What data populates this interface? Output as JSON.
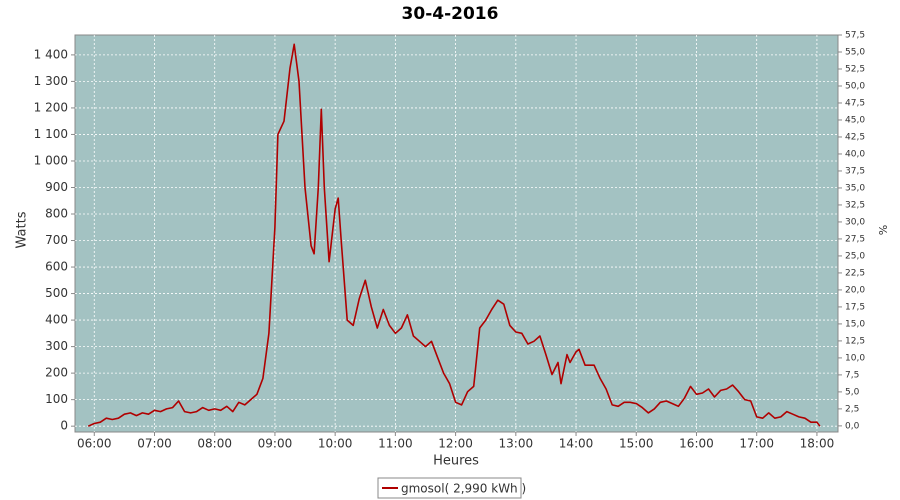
{
  "chart_data": {
    "type": "line",
    "title": "30-4-2016",
    "x_label": "Heures",
    "y_label": "Watts",
    "y2_label": "%",
    "xlim": [
      5.68,
      18.35
    ],
    "xticks": [
      {
        "value": 6,
        "label": "06:00"
      },
      {
        "value": 7,
        "label": "07:00"
      },
      {
        "value": 8,
        "label": "08:00"
      },
      {
        "value": 9,
        "label": "09:00"
      },
      {
        "value": 10,
        "label": "10:00"
      },
      {
        "value": 11,
        "label": "11:00"
      },
      {
        "value": 12,
        "label": "12:00"
      },
      {
        "value": 13,
        "label": "13:00"
      },
      {
        "value": 14,
        "label": "14:00"
      },
      {
        "value": 15,
        "label": "15:00"
      },
      {
        "value": 16,
        "label": "16:00"
      },
      {
        "value": 17,
        "label": "17:00"
      },
      {
        "value": 18,
        "label": "18:00"
      }
    ],
    "ylim": [
      -22,
      1475
    ],
    "yticks": [
      0,
      100,
      200,
      300,
      400,
      500,
      600,
      700,
      800,
      900,
      {
        "value": 1000,
        "label": "1 000"
      },
      {
        "value": 1100,
        "label": "1 100"
      },
      {
        "value": 1200,
        "label": "1 200"
      },
      {
        "value": 1300,
        "label": "1 300"
      },
      {
        "value": 1400,
        "label": "1 400"
      }
    ],
    "y2lim": [
      -0.9,
      57.5
    ],
    "y2ticks": [
      {
        "value": 0,
        "label": "0,0"
      },
      {
        "value": 2.5,
        "label": "2,5"
      },
      {
        "value": 5,
        "label": "5,0"
      },
      {
        "value": 7.5,
        "label": "7,5"
      },
      {
        "value": 10,
        "label": "10,0"
      },
      {
        "value": 12.5,
        "label": "12,5"
      },
      {
        "value": 15,
        "label": "15,0"
      },
      {
        "value": 17.5,
        "label": "17,5"
      },
      {
        "value": 20,
        "label": "20,0"
      },
      {
        "value": 22.5,
        "label": "22,5"
      },
      {
        "value": 25,
        "label": "25,0"
      },
      {
        "value": 27.5,
        "label": "27,5"
      },
      {
        "value": 30,
        "label": "30,0"
      },
      {
        "value": 32.5,
        "label": "32,5"
      },
      {
        "value": 35,
        "label": "35,0"
      },
      {
        "value": 37.5,
        "label": "37,5"
      },
      {
        "value": 40,
        "label": "40,0"
      },
      {
        "value": 42.5,
        "label": "42,5"
      },
      {
        "value": 45,
        "label": "45,0"
      },
      {
        "value": 47.5,
        "label": "47,5"
      },
      {
        "value": 50,
        "label": "50,0"
      },
      {
        "value": 52.5,
        "label": "52,5"
      },
      {
        "value": 55,
        "label": "55,0"
      },
      {
        "value": 57.5,
        "label": "57,5"
      }
    ],
    "grid": true,
    "background": "#a3c2c2",
    "legend": "bottom",
    "x": [
      5.9,
      6.0,
      6.1,
      6.2,
      6.3,
      6.4,
      6.5,
      6.6,
      6.7,
      6.8,
      6.9,
      7.0,
      7.1,
      7.2,
      7.3,
      7.4,
      7.5,
      7.6,
      7.7,
      7.8,
      7.9,
      8.0,
      8.1,
      8.2,
      8.3,
      8.4,
      8.5,
      8.6,
      8.7,
      8.8,
      8.9,
      9.0,
      9.05,
      9.15,
      9.25,
      9.32,
      9.4,
      9.5,
      9.6,
      9.65,
      9.72,
      9.77,
      9.82,
      9.9,
      10.0,
      10.05,
      10.1,
      10.2,
      10.3,
      10.4,
      10.5,
      10.6,
      10.7,
      10.8,
      10.9,
      11.0,
      11.1,
      11.2,
      11.3,
      11.4,
      11.5,
      11.6,
      11.7,
      11.8,
      11.9,
      12.0,
      12.1,
      12.2,
      12.3,
      12.4,
      12.5,
      12.6,
      12.7,
      12.8,
      12.9,
      13.0,
      13.1,
      13.2,
      13.3,
      13.4,
      13.5,
      13.6,
      13.7,
      13.75,
      13.85,
      13.9,
      14.0,
      14.05,
      14.15,
      14.3,
      14.4,
      14.5,
      14.6,
      14.7,
      14.8,
      14.9,
      15.0,
      15.1,
      15.2,
      15.3,
      15.4,
      15.5,
      15.6,
      15.7,
      15.8,
      15.9,
      16.0,
      16.1,
      16.2,
      16.3,
      16.4,
      16.5,
      16.6,
      16.7,
      16.8,
      16.9,
      17.0,
      17.1,
      17.2,
      17.3,
      17.4,
      17.5,
      17.6,
      17.7,
      17.8,
      17.9,
      18.0,
      18.05
    ],
    "series": [
      {
        "name": "gmosol( 2,990 kWh )",
        "color": "#b00000",
        "values": [
          0,
          10,
          15,
          30,
          25,
          30,
          45,
          50,
          40,
          50,
          45,
          60,
          55,
          65,
          70,
          95,
          55,
          50,
          55,
          70,
          60,
          65,
          60,
          75,
          55,
          90,
          80,
          100,
          120,
          180,
          350,
          750,
          1100,
          1150,
          1350,
          1440,
          1300,
          900,
          680,
          650,
          900,
          1195,
          900,
          620,
          820,
          860,
          700,
          400,
          380,
          480,
          550,
          450,
          370,
          440,
          380,
          350,
          370,
          420,
          340,
          320,
          300,
          320,
          260,
          200,
          160,
          90,
          80,
          130,
          150,
          370,
          400,
          440,
          475,
          460,
          380,
          355,
          350,
          310,
          320,
          340,
          270,
          195,
          240,
          160,
          270,
          240,
          280,
          290,
          230,
          230,
          180,
          140,
          80,
          75,
          90,
          90,
          85,
          70,
          50,
          65,
          90,
          95,
          85,
          75,
          105,
          150,
          120,
          125,
          140,
          110,
          135,
          140,
          155,
          130,
          100,
          95,
          35,
          30,
          50,
          30,
          35,
          55,
          45,
          35,
          30,
          15,
          15,
          0
        ]
      }
    ]
  }
}
